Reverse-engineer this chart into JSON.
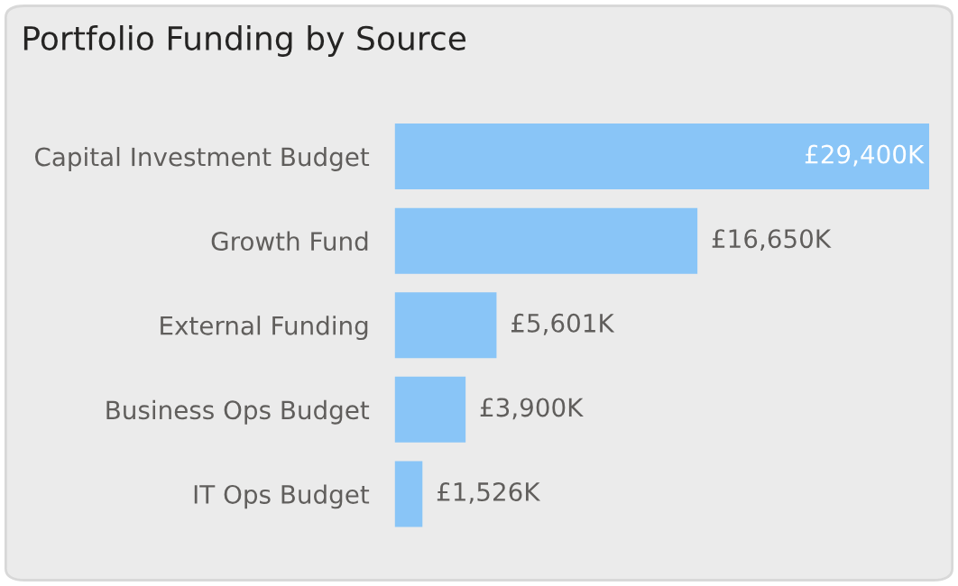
{
  "chart_data": {
    "type": "bar",
    "orientation": "horizontal",
    "title": "Portfolio Funding by Source",
    "categories": [
      "Capital Investment Budget",
      "Growth Fund",
      "External Funding",
      "Business Ops Budget",
      "IT Ops Budget"
    ],
    "values": [
      29400,
      16650,
      5601,
      3900,
      1526
    ],
    "value_labels": [
      "£29,400K",
      "£16,650K",
      "£5,601K",
      "£3,900K",
      "£1,526K"
    ],
    "color": "#89c5f7",
    "grid": false,
    "legend": false
  }
}
